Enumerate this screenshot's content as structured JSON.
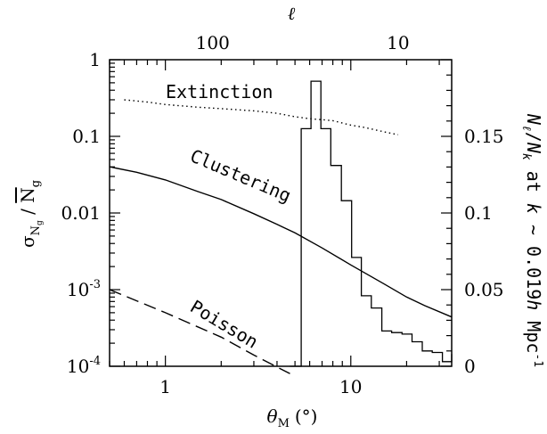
{
  "chart_data": {
    "type": "line",
    "title": "",
    "xlabel": "θM (°)",
    "xlabel_symbol": "θ",
    "xlabel_sub": "M",
    "xlabel_unit": "(°)",
    "top_xlabel": "ℓ",
    "ylabel": "σNg / N̄g",
    "ylabel_sigma": "σ",
    "ylabel_sub": "N",
    "ylabel_subsub": "g",
    "ylabel_N": "N",
    "ylabel_N_sub": "g",
    "right_ylabel": "Nl/Nk at k ~ 0.019hMpc-1",
    "right_ylabel_parts": {
      "N1": "N",
      "sub1": "ℓ",
      "slash": "/",
      "N2": "N",
      "sub2": "k",
      "at": " at ",
      "k": "k",
      "approx": " ~ 0.019",
      "h": "h",
      "unit": " Mpc",
      "exp": "-1"
    },
    "xscale": "log",
    "yscale": "log",
    "xlim": [
      0.5,
      35
    ],
    "ylim": [
      0.0001,
      1
    ],
    "right_ylim": [
      0,
      0.2
    ],
    "x_ticks": [
      {
        "value": 1,
        "label": "1"
      },
      {
        "value": 10,
        "label": "10"
      }
    ],
    "y_ticks": [
      {
        "value": 1,
        "label": "1"
      },
      {
        "value": 0.1,
        "label": "0.1"
      },
      {
        "value": 0.01,
        "label": "0.01"
      },
      {
        "value": 0.001,
        "label": "10",
        "exp": "-3"
      },
      {
        "value": 0.0001,
        "label": "10",
        "exp": "-4"
      }
    ],
    "top_ticks": [
      {
        "theta": 1.8,
        "label": "100"
      },
      {
        "theta": 18,
        "label": "10"
      }
    ],
    "right_ticks": [
      {
        "value": 0,
        "label": "0"
      },
      {
        "value": 0.05,
        "label": "0.05"
      },
      {
        "value": 0.1,
        "label": "0.1"
      },
      {
        "value": 0.15,
        "label": "0.15"
      }
    ],
    "annotations": [
      {
        "text": "Extinction",
        "series": "extinction"
      },
      {
        "text": "Clustering",
        "series": "clustering"
      },
      {
        "text": "Poisson",
        "series": "poisson"
      }
    ],
    "series": [
      {
        "key": "extinction",
        "style": "dotted",
        "x": [
          0.6,
          0.8,
          1,
          1.5,
          2,
          3,
          4,
          5,
          6,
          7,
          8,
          10,
          12,
          15,
          18
        ],
        "y": [
          0.3,
          0.28,
          0.26,
          0.24,
          0.23,
          0.215,
          0.2,
          0.18,
          0.17,
          0.165,
          0.16,
          0.14,
          0.13,
          0.115,
          0.105
        ]
      },
      {
        "key": "clustering",
        "style": "solid",
        "x": [
          0.5,
          0.7,
          1,
          1.5,
          2,
          3,
          4,
          5,
          7,
          10,
          15,
          20,
          25,
          35
        ],
        "y": [
          0.04,
          0.034,
          0.027,
          0.019,
          0.015,
          0.0098,
          0.0071,
          0.0055,
          0.0035,
          0.0021,
          0.0012,
          0.0008,
          0.00062,
          0.00044
        ]
      },
      {
        "key": "poisson",
        "style": "dashed",
        "x": [
          0.5,
          1,
          2,
          3,
          4.7
        ],
        "y": [
          0.001,
          0.0005,
          0.00024,
          0.00014,
          8e-05
        ]
      },
      {
        "key": "histogram",
        "style": "step",
        "axis": "right",
        "edges": [
          4.7,
          5.4,
          6.1,
          6.9,
          7.8,
          8.9,
          10.1,
          11.4,
          12.9,
          14.7,
          16.6,
          18.9,
          21.4,
          24.3,
          27.5,
          31.2,
          35
        ],
        "values": [
          0.0,
          0.155,
          0.186,
          0.155,
          0.131,
          0.108,
          0.071,
          0.046,
          0.038,
          0.023,
          0.022,
          0.021,
          0.016,
          0.01,
          0.009,
          0.003,
          0.008
        ]
      }
    ]
  }
}
